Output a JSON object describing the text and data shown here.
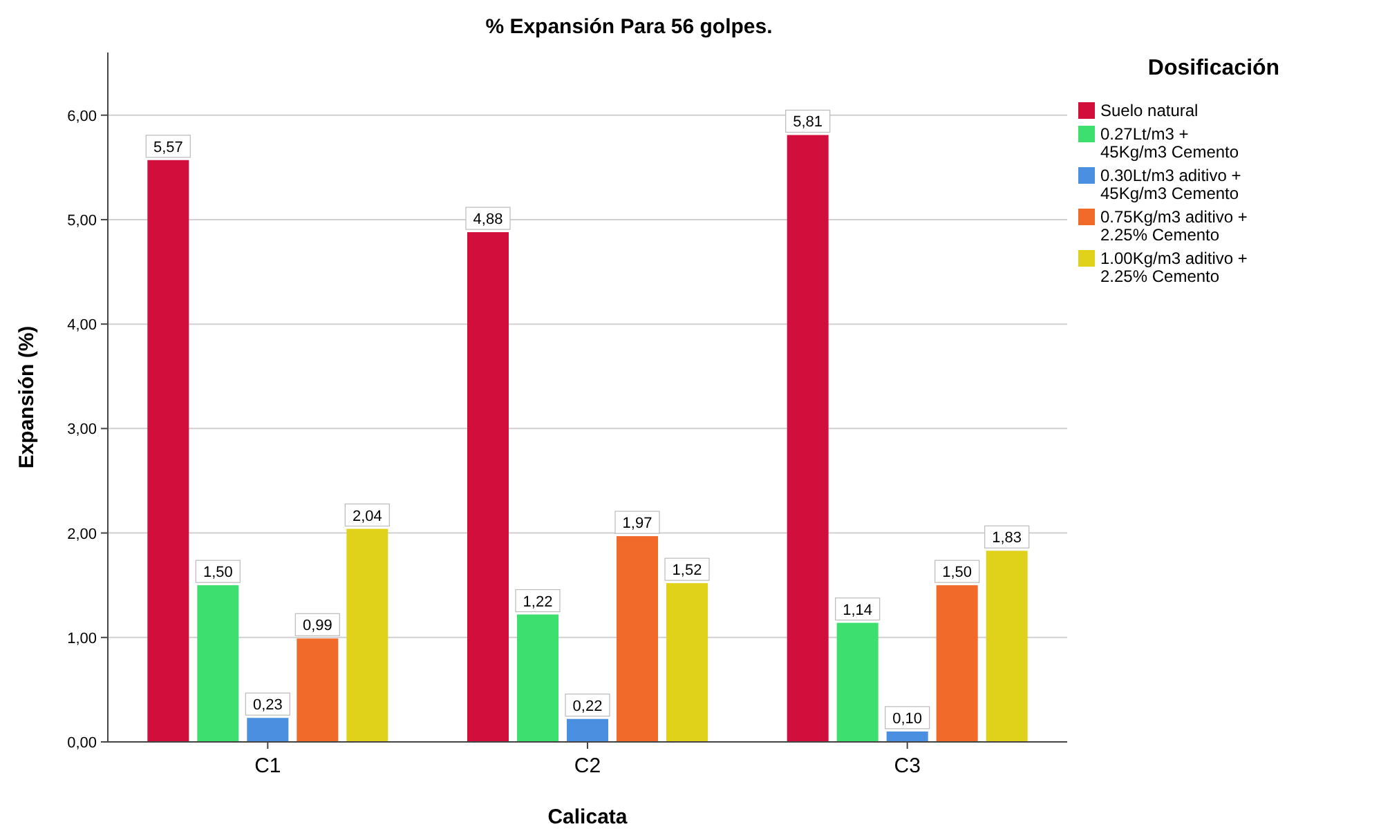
{
  "chart_data": {
    "type": "bar",
    "title": "% Expansión Para 56 golpes.",
    "xlabel": "Calicata",
    "ylabel": "Expansión (%)",
    "legend_title": "Dosificación",
    "categories": [
      "C1",
      "C2",
      "C3"
    ],
    "series": [
      {
        "name": "Suelo natural",
        "color": "#d20f3c",
        "values": [
          5.57,
          4.88,
          5.81
        ],
        "value_labels": [
          "5,57",
          "4,88",
          "5,81"
        ]
      },
      {
        "name": "0.27Lt/m3 + 45Kg/m3 Cemento",
        "color": "#3ddf6f",
        "values": [
          1.5,
          1.22,
          1.14
        ],
        "value_labels": [
          "1,50",
          "1,22",
          "1,14"
        ]
      },
      {
        "name": "0.30Lt/m3 aditivo + 45Kg/m3 Cemento",
        "color": "#4a8fe0",
        "values": [
          0.23,
          0.22,
          0.1
        ],
        "value_labels": [
          "0,23",
          "0,22",
          "0,10"
        ]
      },
      {
        "name": "0.75Kg/m3 aditivo + 2.25% Cemento",
        "color": "#f26a2a",
        "values": [
          0.99,
          1.97,
          1.5
        ],
        "value_labels": [
          "0,99",
          "1,97",
          "1,50"
        ]
      },
      {
        "name": "1.00Kg/m3 aditivo + 2.25% Cemento",
        "color": "#e0d21a",
        "values": [
          2.04,
          1.52,
          1.83
        ],
        "value_labels": [
          "2,04",
          "1,52",
          "1,83"
        ]
      }
    ],
    "ylim": [
      0,
      6.6
    ],
    "yticks": [
      {
        "value": 0,
        "label": "0,00"
      },
      {
        "value": 1,
        "label": "1,00"
      },
      {
        "value": 2,
        "label": "2,00"
      },
      {
        "value": 3,
        "label": "3,00"
      },
      {
        "value": 4,
        "label": "4,00"
      },
      {
        "value": 5,
        "label": "5,00"
      },
      {
        "value": 6,
        "label": "6,00"
      }
    ],
    "grid": "y",
    "legend": "right"
  }
}
